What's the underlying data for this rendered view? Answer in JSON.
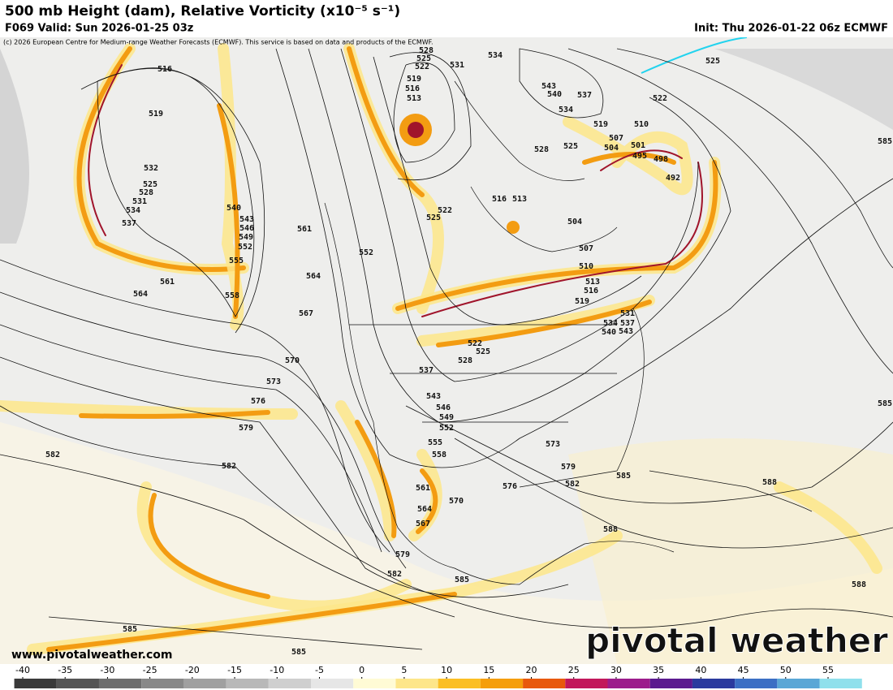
{
  "header": {
    "title": "500 mb Height (dam), Relative Vorticity (x10⁻⁵ s⁻¹)",
    "valid": "F069 Valid: Sun 2026-01-25 03z",
    "init": "Init: Thu 2026-01-22 06z ECMWF",
    "copyright": "(c) 2026 European Centre for Medium-range Weather Forecasts (ECMWF). This service is based on data and products of the ECMWF."
  },
  "footer": {
    "website": "www.pivotalweather.com",
    "logo": "pivotal weather"
  },
  "colorbar": {
    "ticks": [
      -40,
      -35,
      -30,
      -25,
      -20,
      -15,
      -10,
      -5,
      0,
      5,
      10,
      15,
      20,
      25,
      30,
      35,
      40,
      45,
      50,
      55
    ]
  },
  "contour_labels": [
    516,
    519,
    532,
    525,
    528,
    531,
    534,
    537,
    540,
    543,
    546,
    549,
    552,
    555,
    558,
    561,
    564,
    561,
    564,
    567,
    570,
    573,
    576,
    579,
    582,
    582,
    552,
    528,
    525,
    522,
    519,
    516,
    513,
    531,
    534,
    543,
    540,
    537,
    534,
    525,
    522,
    519,
    510,
    507,
    504,
    501,
    498,
    495,
    492,
    528,
    525,
    516,
    513,
    504,
    522,
    525,
    507,
    510,
    513,
    516,
    519,
    531,
    537,
    534,
    540,
    543,
    522,
    525,
    528,
    537,
    543,
    546,
    549,
    552,
    555,
    558,
    561,
    564,
    567,
    570,
    573,
    579,
    576,
    582,
    585,
    588,
    588,
    588,
    585,
    585,
    579,
    582,
    585,
    585,
    585
  ]
}
